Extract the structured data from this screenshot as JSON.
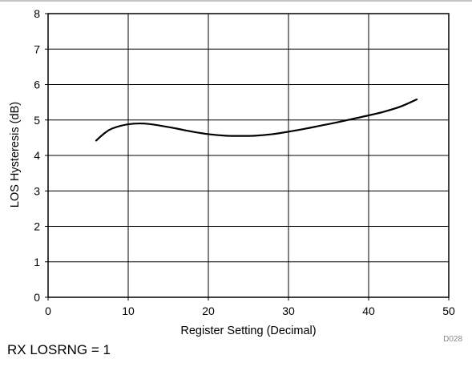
{
  "chart_data": {
    "type": "line",
    "title": "",
    "xlabel": "Register Setting (Decimal)",
    "ylabel": "LOS Hysteresis (dB)",
    "xlim": [
      0,
      50
    ],
    "ylim": [
      0,
      8
    ],
    "xticks": [
      0,
      10,
      20,
      30,
      40,
      50
    ],
    "yticks": [
      0,
      1,
      2,
      3,
      4,
      5,
      6,
      7,
      8
    ],
    "grid": true,
    "legend": "none",
    "series": [
      {
        "color": "#000000",
        "x": [
          6,
          7,
          8,
          10,
          12,
          14,
          16,
          18,
          20,
          22,
          24,
          26,
          28,
          30,
          32,
          34,
          36,
          38,
          40,
          42,
          44,
          46
        ],
        "y": [
          4.42,
          4.62,
          4.76,
          4.88,
          4.9,
          4.84,
          4.76,
          4.67,
          4.6,
          4.56,
          4.55,
          4.56,
          4.6,
          4.67,
          4.75,
          4.84,
          4.93,
          5.03,
          5.13,
          5.24,
          5.38,
          5.58
        ]
      }
    ],
    "figure_id": "D028"
  },
  "caption": "RX LOSRNG = 1"
}
